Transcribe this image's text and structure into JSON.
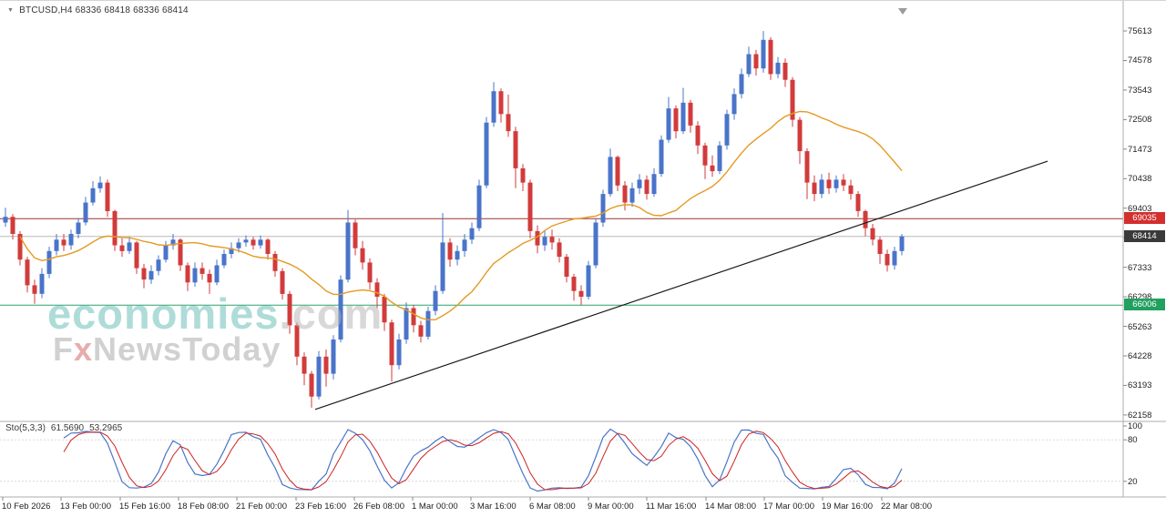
{
  "header": {
    "dropdown_icon": "▼",
    "symbol_line": "BTCUSD,H4 68336 68418 68336 68414"
  },
  "watermark": {
    "brand": "economies",
    "brand_suffix": ".com",
    "tagline_f": "F",
    "tagline_x": "x",
    "tagline_rest": "NewsToday"
  },
  "colors": {
    "up_candle": "#4a74c9",
    "down_candle": "#d23b3b",
    "moving_average": "#e59a23",
    "trendline": "#1a1a1a",
    "stoch_k": "#4a74c9",
    "stoch_d": "#cc2222",
    "resistance_line": "#993333",
    "resistance_badge": "#d32f2f",
    "current_line": "#b8b8b8",
    "current_badge": "#3a3a3a",
    "support_line": "#2fa46a",
    "support_badge": "#21a05f",
    "separator": "#adadad",
    "tick": "#888888"
  },
  "chart_data": {
    "type": "candlestick",
    "symbol": "BTCUSD",
    "timeframe": "H4",
    "current_bar": {
      "open": 68336,
      "high": 68418,
      "low": 68336,
      "close": 68414
    },
    "first_open": 68900,
    "candles_hlc": [
      [
        69420,
        68750,
        69100
      ],
      [
        69200,
        68300,
        68500
      ],
      [
        68600,
        67400,
        67600
      ],
      [
        67700,
        66450,
        66700
      ],
      [
        66900,
        66050,
        66400
      ],
      [
        67300,
        66250,
        67100
      ],
      [
        68050,
        66950,
        67900
      ],
      [
        68500,
        67750,
        68300
      ],
      [
        68500,
        67900,
        68100
      ],
      [
        68650,
        67950,
        68500
      ],
      [
        69050,
        68350,
        68900
      ],
      [
        69800,
        68800,
        69600
      ],
      [
        70350,
        69500,
        70100
      ],
      [
        70520,
        69950,
        70300
      ],
      [
        70400,
        69100,
        69300
      ],
      [
        69350,
        67900,
        68100
      ],
      [
        68350,
        67700,
        67900
      ],
      [
        68400,
        67800,
        68200
      ],
      [
        68250,
        67100,
        67300
      ],
      [
        67450,
        66600,
        66900
      ],
      [
        67400,
        66750,
        67200
      ],
      [
        67750,
        67050,
        67600
      ],
      [
        68250,
        67500,
        68100
      ],
      [
        68500,
        67950,
        68300
      ],
      [
        68350,
        67200,
        67400
      ],
      [
        67500,
        66500,
        66800
      ],
      [
        67500,
        66650,
        67300
      ],
      [
        67500,
        66900,
        67100
      ],
      [
        67250,
        66400,
        66800
      ],
      [
        67600,
        66700,
        67400
      ],
      [
        67950,
        67300,
        67800
      ],
      [
        68200,
        67650,
        68000
      ],
      [
        68350,
        67850,
        68200
      ],
      [
        68450,
        68050,
        68300
      ],
      [
        68400,
        67950,
        68100
      ],
      [
        68450,
        67980,
        68300
      ],
      [
        68350,
        67600,
        67800
      ],
      [
        67900,
        67000,
        67200
      ],
      [
        67300,
        66200,
        66400
      ],
      [
        66500,
        65000,
        65300
      ],
      [
        65400,
        63900,
        64200
      ],
      [
        64350,
        63200,
        63600
      ],
      [
        63700,
        62410,
        62800
      ],
      [
        64400,
        62700,
        64200
      ],
      [
        64450,
        63150,
        63600
      ],
      [
        64950,
        63400,
        64800
      ],
      [
        67050,
        64700,
        66900
      ],
      [
        69340,
        66800,
        68900
      ],
      [
        69000,
        67750,
        68000
      ],
      [
        68250,
        67250,
        67500
      ],
      [
        67650,
        66550,
        66800
      ],
      [
        66950,
        65900,
        66300
      ],
      [
        66400,
        65100,
        65400
      ],
      [
        65500,
        63320,
        63900
      ],
      [
        65000,
        63750,
        64800
      ],
      [
        66100,
        64650,
        65900
      ],
      [
        66000,
        65050,
        65300
      ],
      [
        65450,
        64700,
        64900
      ],
      [
        65950,
        64800,
        65800
      ],
      [
        66700,
        65650,
        66500
      ],
      [
        69230,
        66400,
        68200
      ],
      [
        68350,
        67350,
        67600
      ],
      [
        68100,
        67400,
        67900
      ],
      [
        68500,
        67700,
        68300
      ],
      [
        68900,
        68150,
        68700
      ],
      [
        70400,
        68600,
        70200
      ],
      [
        72600,
        70100,
        72400
      ],
      [
        73820,
        72250,
        73500
      ],
      [
        73600,
        72400,
        72700
      ],
      [
        73380,
        71900,
        72100
      ],
      [
        72250,
        70100,
        70800
      ],
      [
        70950,
        70000,
        70300
      ],
      [
        70400,
        68350,
        68600
      ],
      [
        68800,
        67820,
        68100
      ],
      [
        68600,
        67900,
        68400
      ],
      [
        68650,
        67950,
        68200
      ],
      [
        68350,
        67500,
        67700
      ],
      [
        67800,
        66800,
        67000
      ],
      [
        67100,
        66160,
        66500
      ],
      [
        66700,
        66010,
        66300
      ],
      [
        67550,
        66200,
        67400
      ],
      [
        69050,
        67300,
        68900
      ],
      [
        70050,
        68750,
        69900
      ],
      [
        71490,
        69800,
        71200
      ],
      [
        71250,
        70000,
        70200
      ],
      [
        70350,
        69320,
        69600
      ],
      [
        70300,
        69450,
        70100
      ],
      [
        70600,
        69900,
        70400
      ],
      [
        70550,
        69700,
        69900
      ],
      [
        70800,
        69800,
        70600
      ],
      [
        71950,
        70500,
        71800
      ],
      [
        73300,
        71700,
        72900
      ],
      [
        73000,
        71850,
        72100
      ],
      [
        73620,
        72000,
        73100
      ],
      [
        73200,
        72050,
        72300
      ],
      [
        72450,
        71300,
        71600
      ],
      [
        71700,
        70420,
        70900
      ],
      [
        71250,
        70500,
        70700
      ],
      [
        71750,
        70600,
        71600
      ],
      [
        72850,
        71450,
        72700
      ],
      [
        73600,
        72500,
        73400
      ],
      [
        74300,
        73250,
        74100
      ],
      [
        75060,
        74000,
        74800
      ],
      [
        74950,
        74050,
        74300
      ],
      [
        75610,
        74150,
        75300
      ],
      [
        75400,
        73900,
        74100
      ],
      [
        74700,
        73950,
        74500
      ],
      [
        74650,
        73650,
        73900
      ],
      [
        74000,
        72250,
        72500
      ],
      [
        72600,
        70950,
        71400
      ],
      [
        71500,
        69720,
        70300
      ],
      [
        70550,
        69650,
        69900
      ],
      [
        70600,
        69750,
        70400
      ],
      [
        70650,
        69900,
        70100
      ],
      [
        70550,
        69950,
        70400
      ],
      [
        70600,
        70000,
        70200
      ],
      [
        70400,
        69700,
        69900
      ],
      [
        70000,
        69100,
        69300
      ],
      [
        69350,
        68420,
        68700
      ],
      [
        68850,
        68100,
        68300
      ],
      [
        68400,
        67450,
        67800
      ],
      [
        67950,
        67180,
        67400
      ],
      [
        68050,
        67250,
        67900
      ],
      [
        68500,
        67750,
        68414
      ]
    ],
    "price_axis_labels": [
      75613,
      74578,
      73543,
      72508,
      71473,
      70438,
      69403,
      68368,
      67333,
      66298,
      65263,
      64228,
      63193,
      62158
    ],
    "time_axis_labels": [
      "10 Feb 2026",
      "13 Feb 00:00",
      "15 Feb 16:00",
      "18 Feb 08:00",
      "21 Feb 00:00",
      "23 Feb 16:00",
      "26 Feb 08:00",
      "1 Mar 00:00",
      "3 Mar 16:00",
      "6 Mar 08:00",
      "9 Mar 00:00",
      "11 Mar 16:00",
      "14 Mar 08:00",
      "17 Mar 00:00",
      "19 Mar 16:00",
      "22 Mar 08:00"
    ],
    "hlines": [
      {
        "name": "resistance",
        "price": 69035
      },
      {
        "name": "current-price",
        "price": 68414
      },
      {
        "name": "support",
        "price": 66006
      }
    ],
    "trendline": {
      "from_index": 42.5,
      "from_price": 62350,
      "to_index": 143,
      "to_price": 71050
    },
    "moving_average": {
      "type": "SMA",
      "period": 21
    },
    "stochastic": {
      "label": "Sto(5,3,3)",
      "k_value": "61.5690",
      "d_value": "53.2965",
      "k_period": 5,
      "slowing": 3,
      "d_period": 3,
      "scale_labels": [
        100,
        80,
        20
      ],
      "levels": [
        80,
        20
      ]
    }
  }
}
